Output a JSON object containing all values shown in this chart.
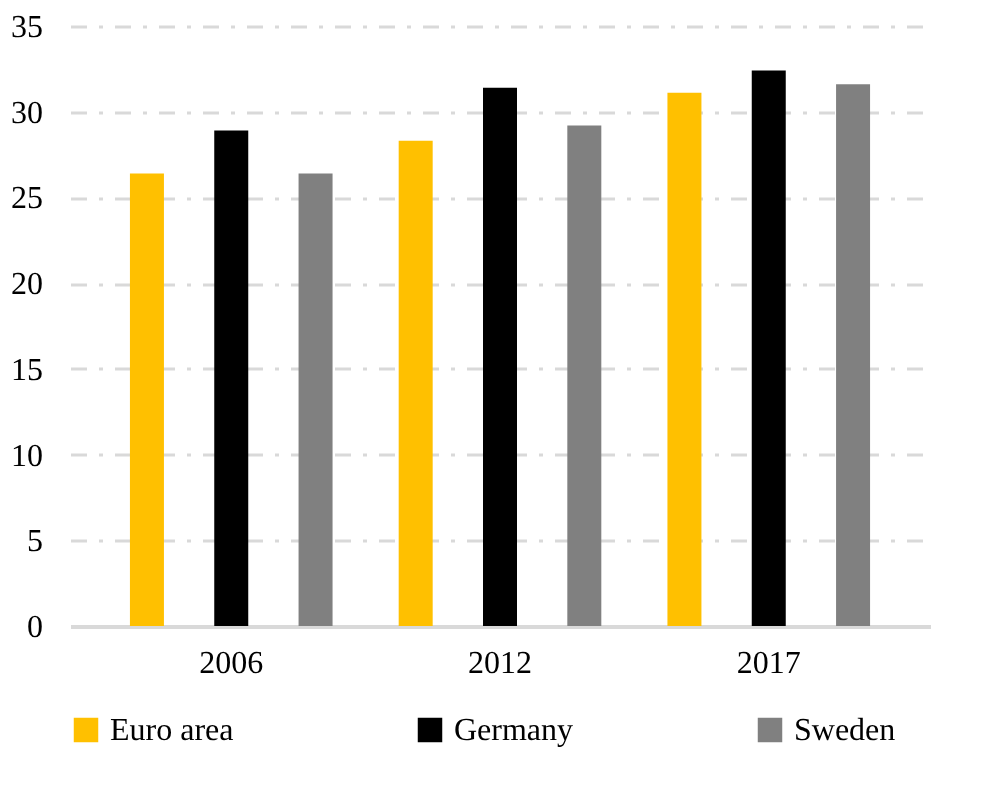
{
  "chart_data": {
    "type": "bar",
    "categories": [
      "2006",
      "2012",
      "2017"
    ],
    "series": [
      {
        "name": "Euro area",
        "color": "#ffc000",
        "values": [
          26.4,
          28.3,
          31.1
        ]
      },
      {
        "name": "Germany",
        "color": "#000000",
        "values": [
          28.9,
          31.4,
          32.4
        ]
      },
      {
        "name": "Sweden",
        "color": "#808080",
        "values": [
          26.4,
          29.2,
          31.6
        ]
      }
    ],
    "ylim": [
      0,
      35
    ],
    "yticks": [
      0,
      5,
      10,
      15,
      20,
      25,
      30,
      35
    ],
    "grid": "y",
    "legend": "bottom"
  }
}
